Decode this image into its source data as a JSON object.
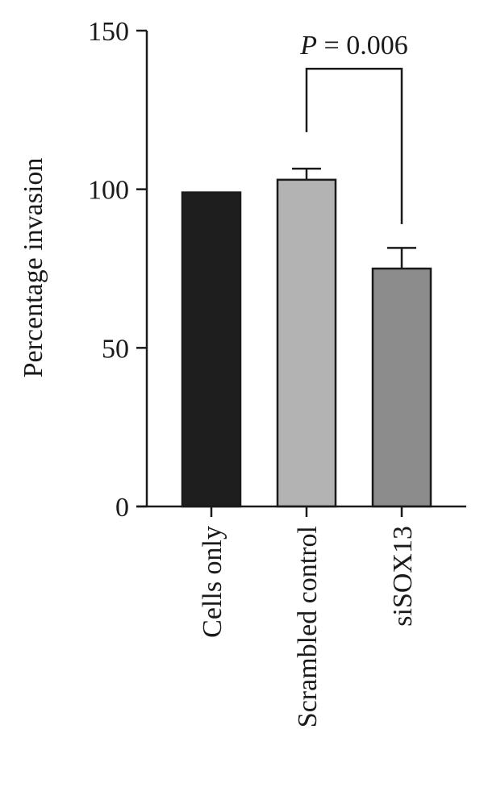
{
  "chart_data": {
    "type": "bar",
    "title": "",
    "xlabel": "",
    "ylabel": "Percentage invasion",
    "categories": [
      "Cells only",
      "Scrambled control",
      "siSOX13"
    ],
    "values": [
      99,
      103,
      75
    ],
    "error": [
      0,
      3.5,
      6.5
    ],
    "bar_colors": [
      "#1e1e1e",
      "#b3b3b3",
      "#8c8c8c"
    ],
    "ylim": [
      0,
      150
    ],
    "yticks": [
      0,
      50,
      100,
      150
    ],
    "ytick_labels": [
      "0",
      "50",
      "100",
      "150"
    ],
    "grid": false,
    "annotations": [
      {
        "text_prefix": "P",
        "text_suffix": " = 0.006",
        "from_category": 1,
        "to_category": 2,
        "bracket_y": 138,
        "left_arm_bottom": 118,
        "right_arm_bottom": 89
      }
    ]
  }
}
